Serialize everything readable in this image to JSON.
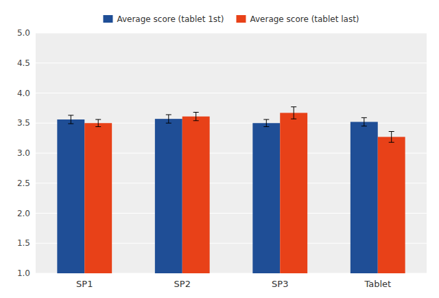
{
  "chart_data": {
    "type": "bar",
    "categories": [
      "SP1",
      "SP2",
      "SP3",
      "Tablet"
    ],
    "series": [
      {
        "name": "Average score (tablet 1st)",
        "color": "#1F4E96",
        "values": [
          3.56,
          3.57,
          3.5,
          3.52
        ],
        "errors": [
          0.07,
          0.07,
          0.06,
          0.07
        ]
      },
      {
        "name": "Average score (tablet last)",
        "color": "#E84118",
        "values": [
          3.5,
          3.61,
          3.67,
          3.27
        ],
        "errors": [
          0.06,
          0.07,
          0.1,
          0.09
        ]
      }
    ],
    "ylim": [
      1,
      5
    ],
    "yticks": [
      {
        "value": 1,
        "label": "1.0"
      },
      1.5,
      {
        "value": 2,
        "label": "2.0"
      },
      2.5,
      {
        "value": 3,
        "label": "3.0"
      },
      3.5,
      {
        "value": 4,
        "label": "4.0"
      },
      4.5,
      {
        "value": 5,
        "label": "5.0"
      }
    ],
    "grid": true,
    "legend": "top"
  }
}
